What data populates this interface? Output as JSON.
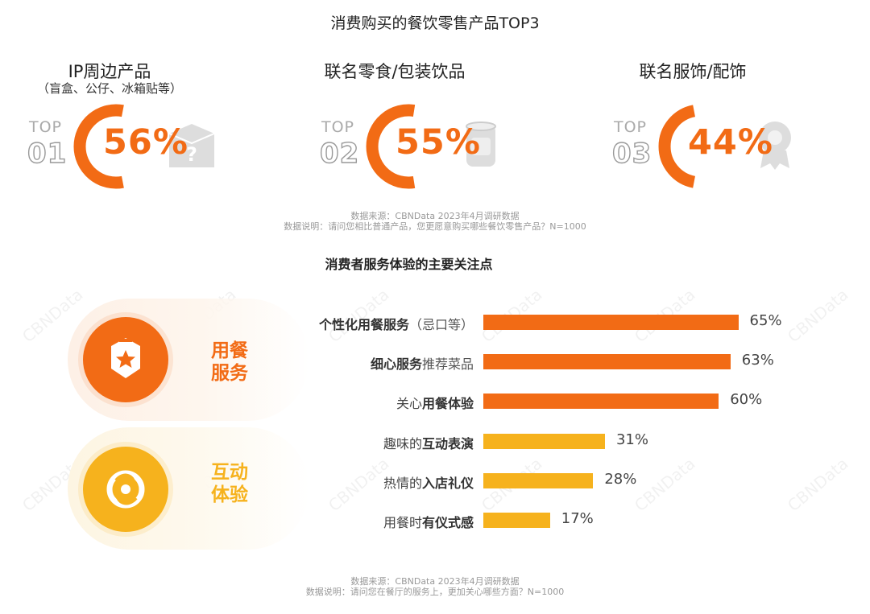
{
  "top_section": {
    "title": "消费购买的餐饮零售产品TOP3",
    "top_label": "TOP",
    "items": [
      {
        "rank": "01",
        "label": "IP周边产品",
        "sub": "（盲盒、公仔、冰箱贴等）",
        "value": 56,
        "value_text": "56%",
        "icon": "mystery-box-icon"
      },
      {
        "rank": "02",
        "label": "联名零食/包装饮品",
        "sub": "",
        "value": 55,
        "value_text": "55%",
        "icon": "can-icon"
      },
      {
        "rank": "03",
        "label": "联名服饰/配饰",
        "sub": "",
        "value": 44,
        "value_text": "44%",
        "icon": "badge-icon"
      }
    ],
    "note_source": "数据来源：CBNData 2023年4月调研数据",
    "note_desc": "数据说明：请问您相比普通产品，您更愿意购买哪些餐饮零售产品？N=1000"
  },
  "bottom_section": {
    "title": "消费者服务体验的主要关注点",
    "groups": [
      {
        "line1": "用餐",
        "line2": "服务",
        "icon": "star-shield-icon",
        "color": "#f26b15"
      },
      {
        "line1": "互动",
        "line2": "体验",
        "icon": "interaction-icon",
        "color": "#f6b21d"
      }
    ],
    "note_source": "数据来源：CBNData 2023年4月调研数据",
    "note_desc": "数据说明：请问您在餐厅的服务上，更加关心哪些方面？N=1000"
  },
  "chart_data": {
    "type": "bar",
    "orientation": "horizontal",
    "title": "消费者服务体验的主要关注点",
    "categories": [
      {
        "plain_before": "",
        "bold": "个性化用餐服务",
        "plain_after": "（忌口等）"
      },
      {
        "plain_before": "",
        "bold": "细心服务",
        "plain_after": "推荐菜品"
      },
      {
        "plain_before": "关心",
        "bold": "用餐体验",
        "plain_after": ""
      },
      {
        "plain_before": "趣味的",
        "bold": "互动表演",
        "plain_after": ""
      },
      {
        "plain_before": "热情的",
        "bold": "入店礼仪",
        "plain_after": ""
      },
      {
        "plain_before": "用餐时",
        "bold": "有仪式感",
        "plain_after": ""
      }
    ],
    "values": [
      65,
      63,
      60,
      31,
      28,
      17
    ],
    "value_labels": [
      "65%",
      "63%",
      "60%",
      "31%",
      "28%",
      "17%"
    ],
    "colors": [
      "#f26b15",
      "#f26b15",
      "#f26b15",
      "#f6b21d",
      "#f6b21d",
      "#f6b21d"
    ],
    "xlim": [
      0,
      100
    ],
    "grid": false
  },
  "watermark": "CBNData"
}
